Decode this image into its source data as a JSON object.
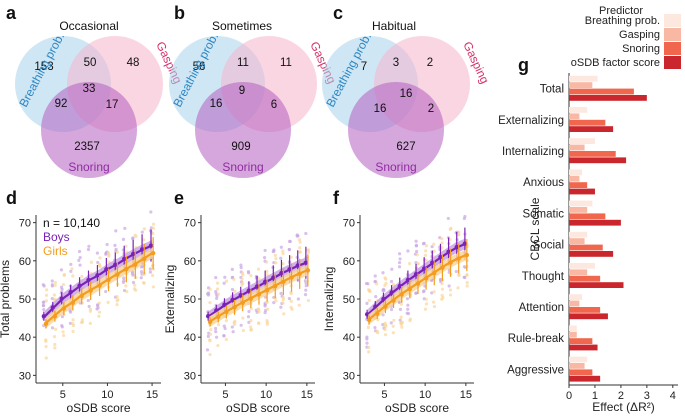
{
  "chart_data": [
    {
      "panel": "a",
      "type": "venn",
      "title": "Occasional",
      "sets": [
        "Breathing prob.",
        "Gasping",
        "Snoring"
      ],
      "colors": {
        "Breathing prob.": "#a8d4ec",
        "Gasping": "#f6b4cc",
        "Snoring": "#b55ec0"
      },
      "regions": {
        "breathing_only": "153",
        "gasping_only": "48",
        "snoring_only": "2357",
        "breathing_gasping": "50",
        "breathing_snoring": "92",
        "gasping_snoring": "17",
        "all": "33"
      }
    },
    {
      "panel": "b",
      "type": "venn",
      "title": "Sometimes",
      "sets": [
        "Breathing prob.",
        "Gasping",
        "Snoring"
      ],
      "regions": {
        "breathing_only": "56",
        "gasping_only": "11",
        "snoring_only": "909",
        "breathing_gasping": "11",
        "breathing_snoring": "16",
        "gasping_snoring": "6",
        "all": "9"
      }
    },
    {
      "panel": "c",
      "type": "venn",
      "title": "Habitual",
      "sets": [
        "Breathing prob.",
        "Gasping",
        "Snoring"
      ],
      "regions": {
        "breathing_only": "7",
        "gasping_only": "2",
        "snoring_only": "627",
        "breathing_gasping": "3",
        "breathing_snoring": "16",
        "gasping_snoring": "2",
        "all": "16"
      }
    },
    {
      "panel": "d",
      "type": "scatter",
      "xlabel": "oSDB score",
      "ylabel": "Total problems",
      "xlim": [
        2,
        16
      ],
      "ylim": [
        28,
        72
      ],
      "xticks": [
        5,
        10,
        15
      ],
      "yticks": [
        30,
        40,
        50,
        60,
        70
      ],
      "annotation": "n = 10,140",
      "series": [
        {
          "name": "Boys",
          "color": "#7a22b8",
          "light": "#c9a6e3",
          "x": [
            3,
            4,
            5,
            6,
            7,
            8,
            9,
            10,
            11,
            12,
            13,
            14,
            15
          ],
          "y": [
            45.5,
            47.8,
            50.1,
            51.8,
            53.5,
            55.0,
            56.2,
            57.8,
            59.0,
            60.5,
            61.8,
            63.0,
            64.0
          ]
        },
        {
          "name": "Girls",
          "color": "#f39c1e",
          "light": "#f9d59a",
          "x": [
            3,
            4,
            5,
            6,
            7,
            8,
            9,
            10,
            11,
            12,
            13,
            14,
            15
          ],
          "y": [
            43.5,
            45.5,
            47.5,
            49.0,
            50.8,
            52.2,
            53.5,
            55.0,
            56.4,
            57.8,
            59.0,
            60.5,
            62.0
          ]
        }
      ]
    },
    {
      "panel": "e",
      "type": "scatter",
      "xlabel": "oSDB score",
      "ylabel": "Externalizing",
      "xlim": [
        2,
        16
      ],
      "ylim": [
        28,
        72
      ],
      "xticks": [
        5,
        10,
        15
      ],
      "yticks": [
        30,
        40,
        50,
        60,
        70
      ],
      "series": [
        {
          "name": "Boys",
          "color": "#7a22b8",
          "light": "#c9a6e3",
          "x": [
            3,
            4,
            5,
            6,
            7,
            8,
            9,
            10,
            11,
            12,
            13,
            14,
            15
          ],
          "y": [
            45.5,
            47.0,
            48.5,
            49.8,
            51.0,
            52.2,
            53.3,
            54.5,
            55.6,
            56.8,
            57.8,
            58.8,
            59.5
          ]
        },
        {
          "name": "Girls",
          "color": "#f39c1e",
          "light": "#f9d59a",
          "x": [
            3,
            4,
            5,
            6,
            7,
            8,
            9,
            10,
            11,
            12,
            13,
            14,
            15
          ],
          "y": [
            44.0,
            45.3,
            46.6,
            47.8,
            49.0,
            50.1,
            51.2,
            52.3,
            53.4,
            54.5,
            55.6,
            56.6,
            57.5
          ]
        }
      ]
    },
    {
      "panel": "f",
      "type": "scatter",
      "xlabel": "oSDB score",
      "ylabel": "Internalizing",
      "xlim": [
        2,
        16
      ],
      "ylim": [
        28,
        72
      ],
      "xticks": [
        5,
        10,
        15
      ],
      "yticks": [
        30,
        40,
        50,
        60,
        70
      ],
      "series": [
        {
          "name": "Boys",
          "color": "#7a22b8",
          "light": "#c9a6e3",
          "x": [
            3,
            4,
            5,
            6,
            7,
            8,
            9,
            10,
            11,
            12,
            13,
            14,
            15
          ],
          "y": [
            46.0,
            48.0,
            50.0,
            51.7,
            53.4,
            55.0,
            56.5,
            58.0,
            59.5,
            61.0,
            62.4,
            63.6,
            64.5
          ]
        },
        {
          "name": "Girls",
          "color": "#f39c1e",
          "light": "#f9d59a",
          "x": [
            3,
            4,
            5,
            6,
            7,
            8,
            9,
            10,
            11,
            12,
            13,
            14,
            15
          ],
          "y": [
            44.5,
            46.2,
            48.0,
            49.6,
            51.2,
            52.6,
            54.0,
            55.4,
            56.8,
            58.2,
            59.5,
            60.6,
            61.5
          ]
        }
      ]
    },
    {
      "panel": "g",
      "type": "bar",
      "orientation": "horizontal",
      "title": "",
      "xlabel": "Effect (ΔR²)",
      "ylabel": "CBCL scale",
      "xlim": [
        0,
        4.2
      ],
      "xticks": [
        0,
        1,
        2,
        3,
        4
      ],
      "legend_title": "Predictor",
      "legend_position": "top-right",
      "categories": [
        "Total",
        "Externalizing",
        "Internalizing",
        "Anxious",
        "Somatic",
        "Social",
        "Thought",
        "Attention",
        "Rule-break",
        "Aggressive"
      ],
      "series": [
        {
          "name": "Breathing prob.",
          "color": "#fde8e0",
          "values": [
            1.1,
            0.7,
            1.0,
            0.5,
            0.9,
            0.7,
            1.0,
            0.5,
            0.3,
            0.7
          ]
        },
        {
          "name": "Gasping",
          "color": "#f9b8a4",
          "values": [
            0.9,
            0.4,
            0.6,
            0.4,
            0.7,
            0.6,
            0.7,
            0.4,
            0.3,
            0.6
          ]
        },
        {
          "name": "Snoring",
          "color": "#f0674e",
          "values": [
            2.5,
            1.4,
            1.8,
            0.7,
            1.4,
            1.3,
            1.2,
            1.2,
            0.9,
            0.9
          ]
        },
        {
          "name": "oSDB factor score",
          "color": "#c9272d",
          "values": [
            3.0,
            1.7,
            2.2,
            1.0,
            2.0,
            1.7,
            2.1,
            1.5,
            1.1,
            1.2
          ]
        }
      ]
    }
  ]
}
